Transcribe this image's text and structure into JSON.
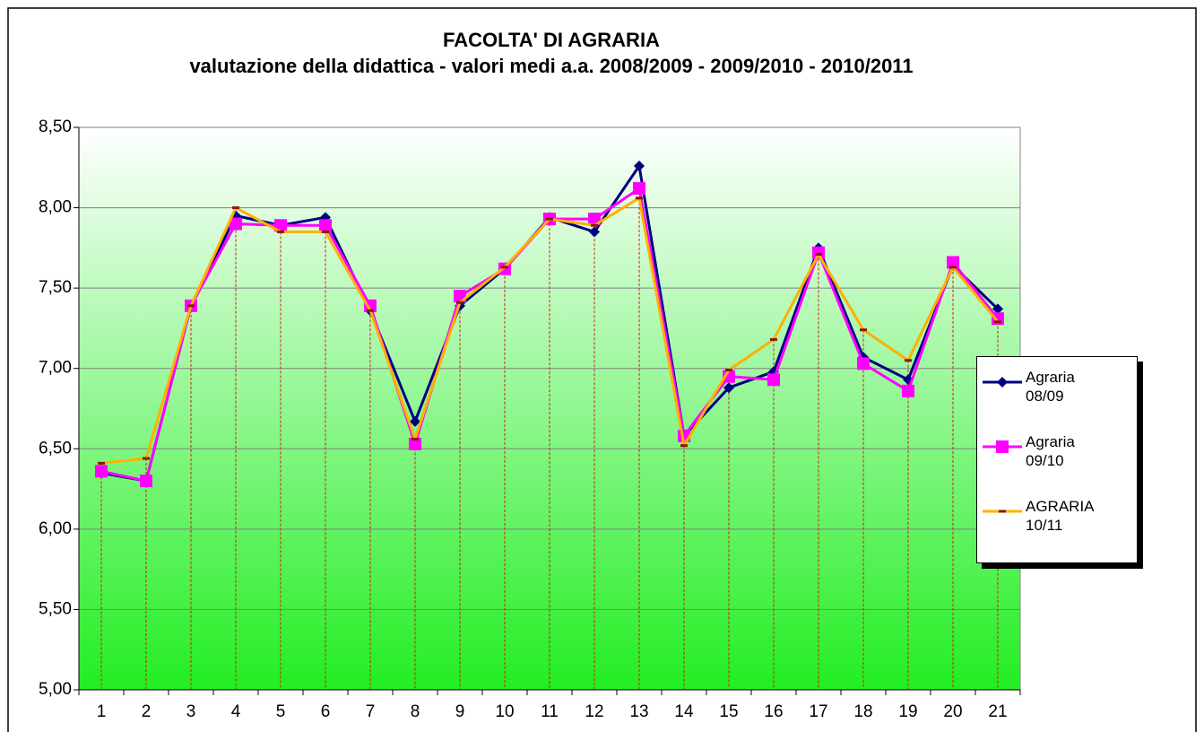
{
  "chart_data": {
    "type": "line",
    "title": "FACOLTA' DI AGRARIA",
    "subtitle": "valutazione della didattica - valori medi a.a.  2008/2009 - 2009/2010 - 2010/2011",
    "categories": [
      "1",
      "2",
      "3",
      "4",
      "5",
      "6",
      "7",
      "8",
      "9",
      "10",
      "11",
      "12",
      "13",
      "14",
      "15",
      "16",
      "17",
      "18",
      "19",
      "20",
      "21"
    ],
    "series": [
      {
        "name": "Agraria 08/09",
        "color": "#000080",
        "marker": "diamond",
        "values": [
          6.35,
          6.3,
          7.39,
          7.95,
          7.89,
          7.94,
          7.36,
          6.67,
          7.39,
          7.62,
          7.94,
          7.85,
          8.26,
          6.58,
          6.88,
          6.98,
          7.75,
          7.07,
          6.93,
          7.64,
          7.37
        ]
      },
      {
        "name": "Agraria 09/10",
        "color": "#ff00ff",
        "marker": "square",
        "values": [
          6.36,
          6.3,
          7.39,
          7.9,
          7.89,
          7.89,
          7.39,
          6.53,
          7.45,
          7.62,
          7.93,
          7.93,
          8.12,
          6.58,
          6.95,
          6.93,
          7.72,
          7.03,
          6.86,
          7.66,
          7.31
        ]
      },
      {
        "name": "AGRARIA 10/11",
        "color": "#ffb000",
        "marker": "dash",
        "values": [
          6.41,
          6.44,
          7.39,
          8.0,
          7.85,
          7.85,
          7.36,
          6.56,
          7.41,
          7.63,
          7.93,
          7.89,
          8.06,
          6.52,
          6.99,
          7.18,
          7.71,
          7.24,
          7.05,
          7.63,
          7.29
        ]
      }
    ],
    "ylim": [
      5,
      8.5
    ],
    "yticks": [
      {
        "value": 5,
        "label": "5,00"
      },
      {
        "value": 5.5,
        "label": "5,50"
      },
      {
        "value": 6,
        "label": "6,00"
      },
      {
        "value": 6.5,
        "label": "6,50"
      },
      {
        "value": 7,
        "label": "7,00"
      },
      {
        "value": 7.5,
        "label": "7,50"
      },
      {
        "value": 8,
        "label": "8,00"
      },
      {
        "value": 8.5,
        "label": "8,50"
      }
    ],
    "grid": true,
    "drop_lines": true,
    "legend": "right"
  }
}
